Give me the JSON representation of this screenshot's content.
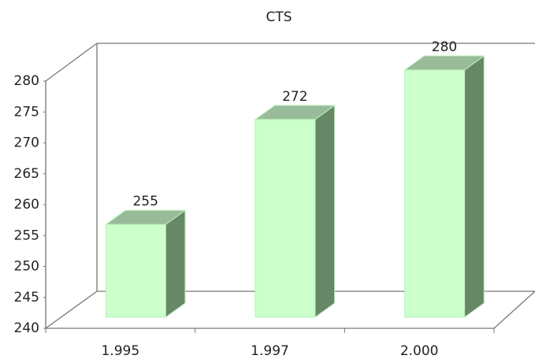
{
  "chart_data": {
    "type": "bar3d",
    "title": "CTS",
    "categories": [
      "1.995",
      "1.997",
      "2.000"
    ],
    "values": [
      255,
      272,
      280
    ],
    "color": "#ccffcc",
    "ylim": [
      240,
      280
    ],
    "yticks": [
      240,
      245,
      250,
      255,
      260,
      265,
      270,
      275,
      280
    ]
  }
}
